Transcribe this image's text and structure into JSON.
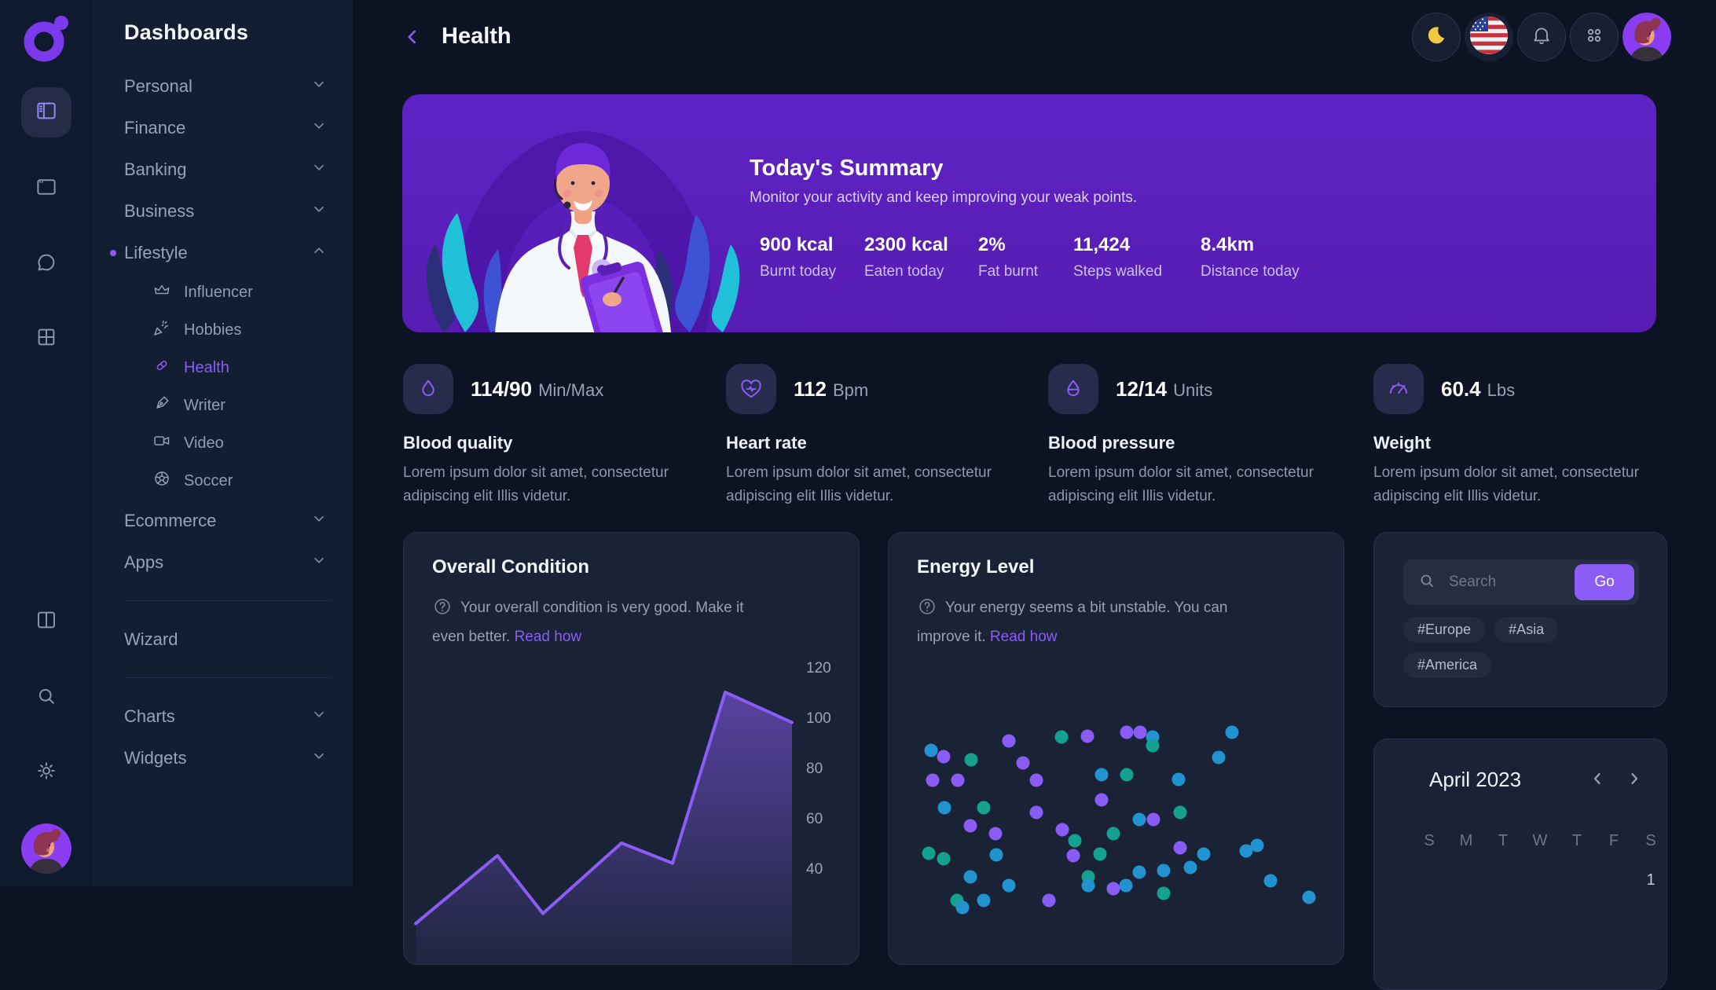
{
  "sidebar": {
    "title": "Dashboards",
    "items": [
      {
        "label": "Personal",
        "chevron": "down"
      },
      {
        "label": "Finance",
        "chevron": "down"
      },
      {
        "label": "Banking",
        "chevron": "down"
      },
      {
        "label": "Business",
        "chevron": "down"
      },
      {
        "label": "Lifestyle",
        "chevron": "up",
        "active_dot": true,
        "children": [
          {
            "label": "Influencer",
            "icon": "crown-icon"
          },
          {
            "label": "Hobbies",
            "icon": "party-popper-icon"
          },
          {
            "label": "Health",
            "icon": "pill-icon",
            "active": true
          },
          {
            "label": "Writer",
            "icon": "pen-nib-icon"
          },
          {
            "label": "Video",
            "icon": "video-camera-icon"
          },
          {
            "label": "Soccer",
            "icon": "soccer-ball-icon"
          }
        ]
      },
      {
        "label": "Ecommerce",
        "chevron": "down"
      },
      {
        "label": "Apps",
        "chevron": "down"
      },
      {
        "divider": true
      },
      {
        "label": "Wizard"
      },
      {
        "divider": true
      },
      {
        "label": "Charts",
        "chevron": "down"
      },
      {
        "label": "Widgets",
        "chevron": "down"
      }
    ]
  },
  "rail": {
    "top_icons": [
      "sidebar-layout-icon",
      "window-icon",
      "chat-icon",
      "grid-icon"
    ],
    "bottom_icons": [
      "columns-icon",
      "search-icon",
      "gear-icon"
    ]
  },
  "header": {
    "title": "Health",
    "top_right_icons": [
      "moon-icon",
      "us-flag-icon",
      "bell-icon",
      "apps-grid-icon",
      "user-avatar"
    ]
  },
  "banner": {
    "title": "Today's Summary",
    "subtitle": "Monitor your activity and keep improving your weak points.",
    "stats": [
      {
        "value": "900 kcal",
        "label": "Burnt today"
      },
      {
        "value": "2300 kcal",
        "label": "Eaten today"
      },
      {
        "value": "2%",
        "label": "Fat burnt"
      },
      {
        "value": "11,424",
        "label": "Steps walked"
      },
      {
        "value": "8.4km",
        "label": "Distance today"
      }
    ],
    "accent_color": "#5b1fb8"
  },
  "stat_cards": [
    {
      "icon": "droplet-icon",
      "value": "114/90",
      "unit": "Min/Max",
      "title": "Blood quality",
      "desc": "Lorem ipsum dolor sit amet, consectetur adipiscing elit Illis videtur."
    },
    {
      "icon": "heart-pulse-icon",
      "value": "112",
      "unit": "Bpm",
      "title": "Heart rate",
      "desc": "Lorem ipsum dolor sit amet, consectetur adipiscing elit Illis videtur."
    },
    {
      "icon": "blood-pressure-icon",
      "value": "12/14",
      "unit": "Units",
      "title": "Blood pressure",
      "desc": "Lorem ipsum dolor sit amet, consectetur adipiscing elit Illis videtur."
    },
    {
      "icon": "gauge-icon",
      "value": "60.4",
      "unit": "Lbs",
      "title": "Weight",
      "desc": "Lorem ipsum dolor sit amet, consectetur adipiscing elit Illis videtur."
    }
  ],
  "overall_condition": {
    "title": "Overall Condition",
    "note": "Your overall condition is very good. Make it even better.",
    "link": "Read how"
  },
  "energy_level": {
    "title": "Energy Level",
    "note": "Your energy seems a bit unstable. You can improve it.",
    "link": "Read how"
  },
  "search_widget": {
    "placeholder": "Search",
    "button": "Go",
    "tags": [
      "#Europe",
      "#Asia",
      "#America"
    ]
  },
  "calendar": {
    "month": "April 2023",
    "day_headers": [
      "S",
      "M",
      "T",
      "W",
      "T",
      "F",
      "S"
    ],
    "first_visible_date": "1"
  },
  "chart_data": [
    {
      "type": "area",
      "title": "Overall Condition",
      "x": [
        0,
        1,
        2,
        3,
        4,
        5,
        6
      ],
      "values": [
        18,
        45,
        22,
        50,
        42,
        110,
        98
      ],
      "yticks": [
        120,
        100,
        80,
        60,
        40
      ],
      "ylabel": "",
      "xlabel": "",
      "line_color": "#8b5cf6",
      "legend": "none",
      "grid": false
    },
    {
      "type": "scatter",
      "title": "Energy Level",
      "colors": {
        "b": "#2193d0",
        "t": "#14a18f",
        "p": "#8a5cf6"
      },
      "points": [
        [
          54,
          277,
          "b"
        ],
        [
          70,
          285,
          "p"
        ],
        [
          105,
          289,
          "t"
        ],
        [
          153,
          265,
          "p"
        ],
        [
          56,
          315,
          "p"
        ],
        [
          88,
          315,
          "p"
        ],
        [
          171,
          293,
          "p"
        ],
        [
          188,
          315,
          "p"
        ],
        [
          220,
          260,
          "t"
        ],
        [
          253,
          259,
          "p"
        ],
        [
          303,
          254,
          "p"
        ],
        [
          320,
          254,
          "p"
        ],
        [
          336,
          260,
          "b"
        ],
        [
          336,
          271,
          "t"
        ],
        [
          437,
          254,
          "b"
        ],
        [
          420,
          286,
          "b"
        ],
        [
          271,
          308,
          "b"
        ],
        [
          303,
          308,
          "t"
        ],
        [
          369,
          314,
          "b"
        ],
        [
          271,
          340,
          "p"
        ],
        [
          71,
          350,
          "b"
        ],
        [
          121,
          350,
          "t"
        ],
        [
          188,
          356,
          "p"
        ],
        [
          319,
          365,
          "b"
        ],
        [
          337,
          365,
          "p"
        ],
        [
          371,
          356,
          "t"
        ],
        [
          104,
          373,
          "p"
        ],
        [
          136,
          383,
          "p"
        ],
        [
          221,
          378,
          "p"
        ],
        [
          237,
          392,
          "t"
        ],
        [
          286,
          383,
          "t"
        ],
        [
          371,
          401,
          "p"
        ],
        [
          401,
          409,
          "b"
        ],
        [
          455,
          405,
          "b"
        ],
        [
          469,
          398,
          "b"
        ],
        [
          51,
          408,
          "t"
        ],
        [
          70,
          415,
          "t"
        ],
        [
          137,
          410,
          "b"
        ],
        [
          235,
          411,
          "p"
        ],
        [
          269,
          409,
          "t"
        ],
        [
          319,
          432,
          "b"
        ],
        [
          350,
          430,
          "b"
        ],
        [
          384,
          426,
          "b"
        ],
        [
          104,
          438,
          "b"
        ],
        [
          153,
          449,
          "b"
        ],
        [
          254,
          438,
          "t"
        ],
        [
          254,
          449,
          "b"
        ],
        [
          286,
          453,
          "p"
        ],
        [
          302,
          449,
          "b"
        ],
        [
          350,
          459,
          "t"
        ],
        [
          486,
          443,
          "b"
        ],
        [
          535,
          464,
          "b"
        ],
        [
          87,
          468,
          "t"
        ],
        [
          94,
          477,
          "b"
        ],
        [
          121,
          468,
          "b"
        ],
        [
          204,
          468,
          "p"
        ]
      ]
    }
  ]
}
